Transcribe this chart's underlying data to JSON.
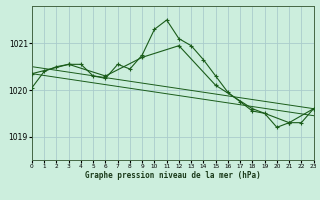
{
  "title": "Graphe pression niveau de la mer (hPa)",
  "background_color": "#cceedd",
  "grid_color": "#aacccc",
  "line_color": "#1a5c1a",
  "xlim": [
    0,
    23
  ],
  "ylim": [
    1018.5,
    1021.8
  ],
  "yticks": [
    1019,
    1020,
    1021
  ],
  "xticks": [
    0,
    1,
    2,
    3,
    4,
    5,
    6,
    7,
    8,
    9,
    10,
    11,
    12,
    13,
    14,
    15,
    16,
    17,
    18,
    19,
    20,
    21,
    22,
    23
  ],
  "series1_x": [
    0,
    1,
    2,
    3,
    4,
    5,
    6,
    7,
    8,
    9,
    10,
    11,
    12,
    13,
    14,
    15,
    16,
    17,
    18,
    19,
    20,
    21,
    22,
    23
  ],
  "series1_y": [
    1020.05,
    1020.4,
    1020.5,
    1020.55,
    1020.55,
    1020.3,
    1020.25,
    1020.55,
    1020.45,
    1020.75,
    1021.3,
    1021.5,
    1021.1,
    1020.95,
    1020.65,
    1020.3,
    1019.95,
    1019.75,
    1019.55,
    1019.5,
    1019.2,
    1019.3,
    1019.3,
    1019.6
  ],
  "series2_x": [
    0,
    3,
    6,
    9,
    12,
    15,
    18,
    21,
    23
  ],
  "series2_y": [
    1020.35,
    1020.55,
    1020.3,
    1020.7,
    1020.95,
    1020.1,
    1019.6,
    1019.3,
    1019.6
  ],
  "line1_x": [
    0,
    23
  ],
  "line1_y": [
    1020.5,
    1019.6
  ],
  "line2_x": [
    0,
    23
  ],
  "line2_y": [
    1020.35,
    1019.45
  ]
}
